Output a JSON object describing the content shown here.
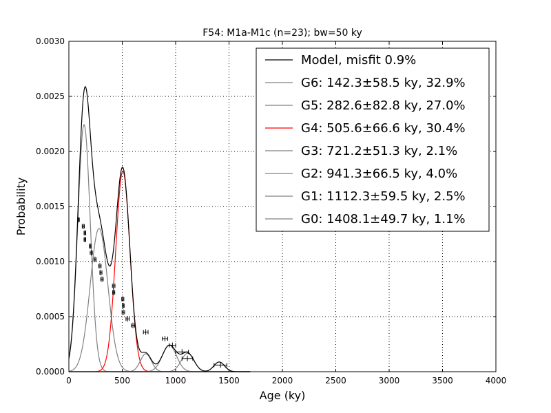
{
  "chart_data": {
    "type": "line",
    "title": "F54: M1a-M1c (n=23); bw=50 ky",
    "xlabel": "Age (ky)",
    "ylabel": "Probability",
    "xlim": [
      0,
      4000
    ],
    "ylim": [
      0,
      0.003
    ],
    "xticks": [
      0,
      500,
      1000,
      1500,
      2000,
      2500,
      3000,
      3500,
      4000
    ],
    "xtick_labels": [
      "0",
      "500",
      "1000",
      "1500",
      "2000",
      "2500",
      "3000",
      "3500",
      "4000"
    ],
    "yticks": [
      0,
      0.0005,
      0.001,
      0.0015,
      0.002,
      0.0025,
      0.003
    ],
    "ytick_labels": [
      "0.0000",
      "0.0005",
      "0.0010",
      "0.0015",
      "0.0020",
      "0.0025",
      "0.0030"
    ],
    "grid": true,
    "legend_position": "top-right",
    "colors": {
      "model": "#000000",
      "component": "#808080",
      "highlight": "#ff0000",
      "samples": "#000000"
    },
    "model": {
      "name": "Model, misfit 0.9%"
    },
    "components": [
      {
        "name": "G6: 142.3±58.5 ky, 32.9%",
        "mean": 142.3,
        "sigma": 58.5,
        "weight": 0.329,
        "color": "#808080"
      },
      {
        "name": "G5: 282.6±82.8 ky, 27.0%",
        "mean": 282.6,
        "sigma": 82.8,
        "weight": 0.27,
        "color": "#808080"
      },
      {
        "name": "G4: 505.6±66.6 ky, 30.4%",
        "mean": 505.6,
        "sigma": 66.6,
        "weight": 0.304,
        "color": "#ff0000"
      },
      {
        "name": "G3: 721.2±51.3 ky, 2.1%",
        "mean": 721.2,
        "sigma": 51.3,
        "weight": 0.021,
        "color": "#808080"
      },
      {
        "name": "G2: 941.3±66.5 ky, 4.0%",
        "mean": 941.3,
        "sigma": 66.5,
        "weight": 0.04,
        "color": "#808080"
      },
      {
        "name": "G1: 1112.3±59.5 ky, 2.5%",
        "mean": 1112.3,
        "sigma": 59.5,
        "weight": 0.025,
        "color": "#808080"
      },
      {
        "name": "G0: 1408.1±49.7 ky, 1.1%",
        "mean": 1408.1,
        "sigma": 49.7,
        "weight": 0.011,
        "color": "#808080"
      }
    ],
    "samples": [
      {
        "x": 90,
        "y": 0.00138,
        "err": 8
      },
      {
        "x": 135,
        "y": 0.00132,
        "err": 10
      },
      {
        "x": 150,
        "y": 0.00126,
        "err": 8
      },
      {
        "x": 150,
        "y": 0.0012,
        "err": 8
      },
      {
        "x": 200,
        "y": 0.00114,
        "err": 8
      },
      {
        "x": 210,
        "y": 0.00108,
        "err": 10
      },
      {
        "x": 245,
        "y": 0.00102,
        "err": 10
      },
      {
        "x": 290,
        "y": 0.00096,
        "err": 12
      },
      {
        "x": 300,
        "y": 0.0009,
        "err": 10
      },
      {
        "x": 310,
        "y": 0.00084,
        "err": 12
      },
      {
        "x": 420,
        "y": 0.00078,
        "err": 12
      },
      {
        "x": 420,
        "y": 0.00072,
        "err": 10
      },
      {
        "x": 505,
        "y": 0.00066,
        "err": 10
      },
      {
        "x": 510,
        "y": 0.0006,
        "err": 8
      },
      {
        "x": 510,
        "y": 0.00054,
        "err": 12
      },
      {
        "x": 550,
        "y": 0.00048,
        "err": 15
      },
      {
        "x": 600,
        "y": 0.00042,
        "err": 15
      },
      {
        "x": 720,
        "y": 0.00036,
        "err": 22
      },
      {
        "x": 900,
        "y": 0.0003,
        "err": 25
      },
      {
        "x": 970,
        "y": 0.00024,
        "err": 30
      },
      {
        "x": 1060,
        "y": 0.00018,
        "err": 60
      },
      {
        "x": 1110,
        "y": 0.00012,
        "err": 50
      },
      {
        "x": 1420,
        "y": 6e-05,
        "err": 60
      }
    ]
  }
}
